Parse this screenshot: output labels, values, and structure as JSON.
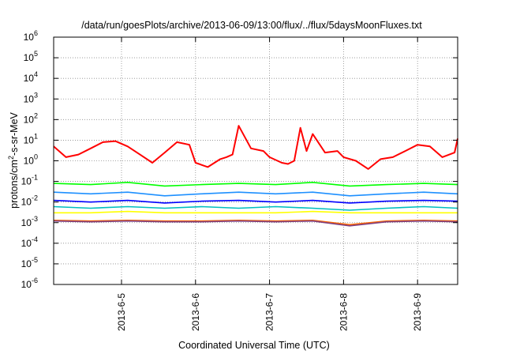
{
  "chart_data": {
    "type": "line",
    "title": "/data/run/goesPlots/archive/2013-06-09/13:00/flux/../flux/5daysMoonFluxes.txt",
    "xlabel": "Coordinated Universal Time (UTC)",
    "ylabel": "protons/cm2-s-sr-MeV",
    "ylabel_parts": {
      "base": "protons/cm",
      "sup": "2",
      "rest": "-s-sr-MeV"
    },
    "y_scale": "log",
    "ylim": [
      1e-06,
      1000000.0
    ],
    "y_ticks": [
      {
        "base": "10",
        "exp": "-6",
        "value": 1e-06
      },
      {
        "base": "10",
        "exp": "-5",
        "value": 1e-05
      },
      {
        "base": "10",
        "exp": "-4",
        "value": 0.0001
      },
      {
        "base": "10",
        "exp": "-3",
        "value": 0.001
      },
      {
        "base": "10",
        "exp": "-2",
        "value": 0.01
      },
      {
        "base": "10",
        "exp": "-1",
        "value": 0.1
      },
      {
        "base": "10",
        "exp": "0",
        "value": 1
      },
      {
        "base": "10",
        "exp": "1",
        "value": 10
      },
      {
        "base": "10",
        "exp": "2",
        "value": 100
      },
      {
        "base": "10",
        "exp": "3",
        "value": 1000
      },
      {
        "base": "10",
        "exp": "4",
        "value": 10000
      },
      {
        "base": "10",
        "exp": "5",
        "value": 100000
      },
      {
        "base": "10",
        "exp": "6",
        "value": 1000000
      }
    ],
    "xlim": [
      "2013-06-04T02:00",
      "2013-06-09T13:00"
    ],
    "x_ticks": [
      {
        "label": "2013-6-5",
        "date": "2013-06-05T00:00"
      },
      {
        "label": "2013-6-6",
        "date": "2013-06-06T00:00"
      },
      {
        "label": "2013-6-7",
        "date": "2013-06-07T00:00"
      },
      {
        "label": "2013-6-8",
        "date": "2013-06-08T00:00"
      },
      {
        "label": "2013-6-9",
        "date": "2013-06-09T00:00"
      }
    ],
    "grid": true,
    "series": [
      {
        "color": "#ff0000",
        "x": [
          "2013-06-04T02:00",
          "2013-06-04T06:00",
          "2013-06-04T10:00",
          "2013-06-04T14:00",
          "2013-06-04T18:00",
          "2013-06-04T22:00",
          "2013-06-05T02:00",
          "2013-06-05T06:00",
          "2013-06-05T10:00",
          "2013-06-05T14:00",
          "2013-06-05T18:00",
          "2013-06-05T22:00",
          "2013-06-06T00:00",
          "2013-06-06T04:00",
          "2013-06-06T08:00",
          "2013-06-06T10:00",
          "2013-06-06T12:00",
          "2013-06-06T14:00",
          "2013-06-06T18:00",
          "2013-06-06T22:00",
          "2013-06-07T00:00",
          "2013-06-07T04:00",
          "2013-06-07T06:00",
          "2013-06-07T08:00",
          "2013-06-07T10:00",
          "2013-06-07T12:00",
          "2013-06-07T14:00",
          "2013-06-07T18:00",
          "2013-06-07T22:00",
          "2013-06-08T00:00",
          "2013-06-08T04:00",
          "2013-06-08T08:00",
          "2013-06-08T12:00",
          "2013-06-08T16:00",
          "2013-06-08T20:00",
          "2013-06-09T00:00",
          "2013-06-09T04:00",
          "2013-06-09T08:00",
          "2013-06-09T12:00",
          "2013-06-09T13:00"
        ],
        "y": [
          5,
          1.5,
          2,
          4,
          8,
          9,
          5,
          2,
          0.8,
          2.5,
          8,
          6,
          0.8,
          0.5,
          1.2,
          1.5,
          2,
          50,
          4,
          3,
          1.5,
          0.8,
          0.7,
          1,
          40,
          3,
          20,
          2.5,
          3,
          1.5,
          1,
          0.4,
          1.2,
          1.5,
          3,
          6,
          5,
          1.5,
          2.5,
          12
        ]
      },
      {
        "color": "#00ff00",
        "x": [
          "2013-06-04T02:00",
          "2013-06-04T14:00",
          "2013-06-05T02:00",
          "2013-06-05T14:00",
          "2013-06-06T02:00",
          "2013-06-06T14:00",
          "2013-06-07T02:00",
          "2013-06-07T14:00",
          "2013-06-08T02:00",
          "2013-06-08T14:00",
          "2013-06-09T02:00",
          "2013-06-09T13:00"
        ],
        "y": [
          0.08,
          0.07,
          0.09,
          0.06,
          0.07,
          0.08,
          0.07,
          0.09,
          0.06,
          0.07,
          0.08,
          0.07
        ]
      },
      {
        "color": "#1e90ff",
        "x": [
          "2013-06-04T02:00",
          "2013-06-04T14:00",
          "2013-06-05T02:00",
          "2013-06-05T14:00",
          "2013-06-06T02:00",
          "2013-06-06T14:00",
          "2013-06-07T02:00",
          "2013-06-07T14:00",
          "2013-06-08T02:00",
          "2013-06-08T14:00",
          "2013-06-09T02:00",
          "2013-06-09T13:00"
        ],
        "y": [
          0.03,
          0.025,
          0.03,
          0.02,
          0.025,
          0.03,
          0.025,
          0.03,
          0.02,
          0.025,
          0.03,
          0.025
        ]
      },
      {
        "color": "#0000ff",
        "x": [
          "2013-06-04T02:00",
          "2013-06-04T14:00",
          "2013-06-05T02:00",
          "2013-06-05T14:00",
          "2013-06-06T02:00",
          "2013-06-06T14:00",
          "2013-06-07T02:00",
          "2013-06-07T14:00",
          "2013-06-08T02:00",
          "2013-06-08T14:00",
          "2013-06-09T02:00",
          "2013-06-09T13:00"
        ],
        "y": [
          0.012,
          0.01,
          0.012,
          0.009,
          0.011,
          0.012,
          0.01,
          0.012,
          0.009,
          0.011,
          0.012,
          0.011
        ]
      },
      {
        "color": "#00bfbf",
        "x": [
          "2013-06-04T02:00",
          "2013-06-04T14:00",
          "2013-06-05T02:00",
          "2013-06-05T14:00",
          "2013-06-06T02:00",
          "2013-06-06T14:00",
          "2013-06-07T02:00",
          "2013-06-07T14:00",
          "2013-06-08T02:00",
          "2013-06-08T14:00",
          "2013-06-09T02:00",
          "2013-06-09T13:00"
        ],
        "y": [
          0.006,
          0.005,
          0.006,
          0.005,
          0.006,
          0.005,
          0.006,
          0.005,
          0.004,
          0.005,
          0.006,
          0.005
        ]
      },
      {
        "color": "#ffff00",
        "x": [
          "2013-06-04T02:00",
          "2013-06-04T14:00",
          "2013-06-05T02:00",
          "2013-06-05T14:00",
          "2013-06-06T02:00",
          "2013-06-06T14:00",
          "2013-06-07T02:00",
          "2013-06-07T14:00",
          "2013-06-08T02:00",
          "2013-06-08T14:00",
          "2013-06-09T02:00",
          "2013-06-09T13:00"
        ],
        "y": [
          0.003,
          0.003,
          0.0035,
          0.003,
          0.003,
          0.003,
          0.003,
          0.0035,
          0.003,
          0.003,
          0.003,
          0.003
        ]
      },
      {
        "color": "#ff6600",
        "x": [
          "2013-06-04T02:00",
          "2013-06-04T14:00",
          "2013-06-05T02:00",
          "2013-06-05T14:00",
          "2013-06-06T02:00",
          "2013-06-06T14:00",
          "2013-06-07T02:00",
          "2013-06-07T14:00",
          "2013-06-08T02:00",
          "2013-06-08T14:00",
          "2013-06-09T02:00",
          "2013-06-09T13:00"
        ],
        "y": [
          0.0013,
          0.0012,
          0.0013,
          0.0012,
          0.0012,
          0.0013,
          0.0012,
          0.0013,
          0.0008,
          0.0012,
          0.0013,
          0.0012
        ]
      },
      {
        "color": "#7f3f7f",
        "x": [
          "2013-06-04T02:00",
          "2013-06-04T14:00",
          "2013-06-05T02:00",
          "2013-06-05T14:00",
          "2013-06-06T02:00",
          "2013-06-06T14:00",
          "2013-06-07T02:00",
          "2013-06-07T14:00",
          "2013-06-08T02:00",
          "2013-06-08T14:00",
          "2013-06-09T02:00",
          "2013-06-09T13:00"
        ],
        "y": [
          0.0012,
          0.0011,
          0.0012,
          0.0011,
          0.0011,
          0.0012,
          0.0011,
          0.0012,
          0.0007,
          0.0011,
          0.0012,
          0.0011
        ]
      }
    ]
  }
}
